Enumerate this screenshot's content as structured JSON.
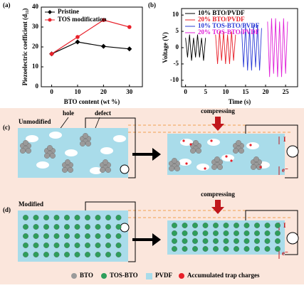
{
  "chart_data": [
    {
      "type": "line",
      "panel": "(a)",
      "xlabel": "BTO content (wt %)",
      "ylabel": "Piezoelectric coefficient (d₃₃)",
      "xlim": [
        -4,
        35
      ],
      "xticks": [
        0,
        10,
        20,
        30
      ],
      "ylim": [
        0,
        40
      ],
      "yticks": [
        0,
        10,
        20,
        30,
        40
      ],
      "legend": "upper left",
      "series": [
        {
          "name": "Pristine",
          "color": "#000000",
          "marker": "diamond",
          "x": [
            0,
            10,
            20,
            30
          ],
          "values": [
            16.5,
            22.5,
            20.3,
            19
          ]
        },
        {
          "name": "TOS modification",
          "color": "#e8202a",
          "marker": "circle",
          "x": [
            0,
            10,
            20,
            30
          ],
          "values": [
            16.5,
            25,
            33.5,
            30
          ]
        }
      ]
    },
    {
      "type": "line",
      "panel": "(b)",
      "xlabel": "Time (s)",
      "ylabel": "Voltage (V)",
      "xlim": [
        -1,
        28
      ],
      "xticks": [
        0,
        5,
        10,
        15,
        20,
        25
      ],
      "ylim": [
        -12,
        12
      ],
      "yticks": [
        -10,
        -5,
        0,
        5,
        10
      ],
      "legend": "upper left",
      "series": [
        {
          "name": "10% BTO/PVDF",
          "color": "#000000",
          "x": [
            0,
            0.5,
            1,
            1.5,
            2,
            2.5,
            3,
            3.5,
            4,
            4.5,
            5
          ],
          "values": [
            3,
            -3,
            4,
            -4,
            3,
            -3,
            4,
            -3,
            3,
            -4,
            3
          ]
        },
        {
          "name": "20% BTO/PVDF",
          "color": "#e8202a",
          "x": [
            7.5,
            8,
            8.5,
            9,
            9.5,
            10,
            10.5,
            11,
            11.5,
            12,
            12.5
          ],
          "values": [
            4,
            -5,
            5,
            -4,
            5,
            -5,
            4,
            -5,
            5,
            -4,
            4
          ]
        },
        {
          "name": "10% TOS-BTO/PVDF",
          "color": "#2b3bd6",
          "x": [
            14,
            14.5,
            15,
            15.5,
            16,
            16.5,
            17,
            17.5,
            18,
            18.5,
            19
          ],
          "values": [
            6,
            -6,
            7,
            -7,
            6,
            -7,
            7,
            -6,
            7,
            -7,
            6
          ]
        },
        {
          "name": "20% TOS-BTO/PVDF",
          "color": "#e020d8",
          "x": [
            20.5,
            21,
            21.5,
            22,
            22.5,
            23,
            23.5,
            24,
            24.5,
            25,
            25.5
          ],
          "values": [
            8,
            -9,
            9,
            -8,
            9,
            -9,
            8,
            -9,
            9,
            -8,
            8
          ]
        }
      ]
    }
  ],
  "diagram": {
    "c": {
      "panel": "(c)",
      "label": "Unmodified",
      "hole": "hole",
      "defect": "defect",
      "action": "compressing",
      "current": "I",
      "electron": "e⁻"
    },
    "d": {
      "panel": "(d)",
      "label": "Modified",
      "action": "compressing",
      "current": "I",
      "electron": "e⁻"
    },
    "legend": [
      "BTO",
      "TOS-BTO",
      "PVDF",
      "Accumulated trap charges"
    ]
  }
}
